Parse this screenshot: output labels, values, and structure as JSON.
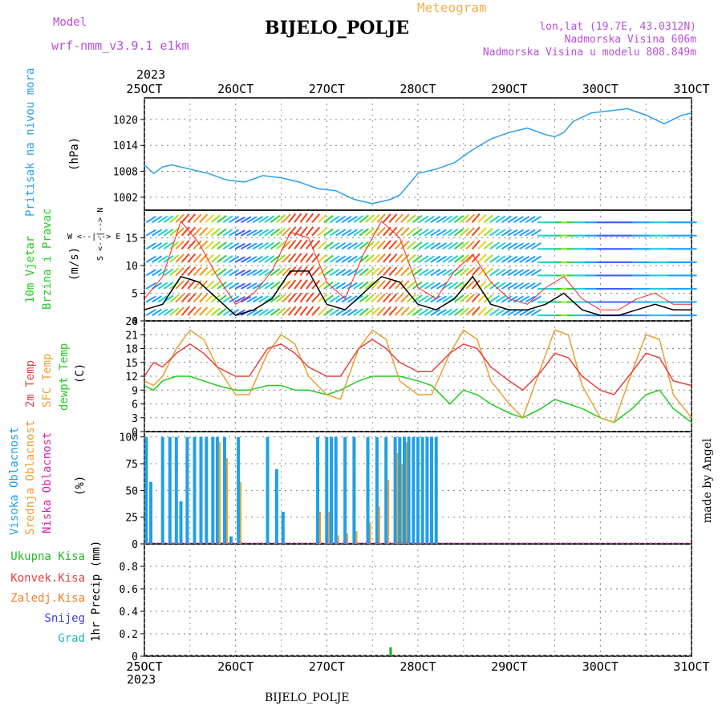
{
  "header": {
    "model_label": "Model",
    "model_name": "wrf-nmm_v3.9.1 e1km",
    "chart_title": "BIJELO_POLJE",
    "meteogram_label": "Meteogram",
    "location": "lon,lat (19.7E, 43.0312N)",
    "altitude": "Nadmorska Visina 606m",
    "model_altitude": "Nadmorska Visina u modelu 808.849m",
    "year_top": "2023",
    "year_bottom": "2023",
    "footer_station": "BIJELO_POLJE",
    "credit": "made by Angel"
  },
  "colors": {
    "pressure": "#2aa0e6",
    "temp2m": "#e84040",
    "sfc_temp": "#e8a030",
    "dewpt": "#22cc22",
    "wind_speed": "#000000",
    "wind_gust": "#ff2020",
    "high_cloud": "#20a0e6",
    "mid_cloud": "#e8a030",
    "low_cloud": "#dd20aa",
    "precip": "#22aa22",
    "grid": "#808080",
    "purple_text": "#b84fd6"
  },
  "x_axis": {
    "tick_labels": [
      "25OCT",
      "26OCT",
      "27OCT",
      "28OCT",
      "29OCT",
      "30OCT",
      "31OCT"
    ],
    "days": [
      25,
      26,
      27,
      28,
      29,
      30,
      31
    ],
    "range_days": [
      25,
      31
    ]
  },
  "panels": {
    "pressure": {
      "ylabel": "Pritisak na nivou mora",
      "unit": "(hPa)",
      "yticks": [
        1002,
        1008,
        1014,
        1020
      ],
      "ylim": [
        999,
        1025
      ]
    },
    "wind": {
      "ylabel1": "10m Vjetar",
      "ylabel2": "Brzina i Pravac",
      "unit": "(m/s)",
      "compass_ns": "S <--|--> N",
      "compass_ew": "W <--|--> E",
      "yticks": [
        0,
        5,
        10,
        15
      ],
      "ylim": [
        0,
        20
      ]
    },
    "temperature": {
      "ylabel1": "2m Temp",
      "ylabel2": "SFC Temp",
      "ylabel3": "dewpt Temp",
      "unit": "(C)",
      "yticks": [
        0,
        3,
        6,
        9,
        12,
        15,
        18,
        21,
        24
      ],
      "ylim": [
        0,
        24
      ]
    },
    "cloud": {
      "ylabel1": "Visoka Oblacnost",
      "ylabel2": "Srednja Oblacnost",
      "ylabel3": "Niska Oblacnost",
      "unit": "(%)",
      "yticks": [
        0,
        25,
        50,
        75,
        100
      ],
      "ylim": [
        0,
        105
      ]
    },
    "precip": {
      "legend": [
        "Ukupna Kisa",
        "Konvek.Kisa",
        "Zaledj.Kisa",
        "Snijeg",
        "Grad"
      ],
      "legend_colors": [
        "#22bb22",
        "#e84040",
        "#f08030",
        "#4040e0",
        "#20b8b8"
      ],
      "ylabel": "1hr Precip (mm)",
      "yticks": [
        0,
        0.2,
        0.4,
        0.6,
        0.8
      ],
      "ylim": [
        0,
        1.0
      ]
    }
  },
  "chart_data": [
    {
      "type": "line",
      "name": "pressure",
      "x": [
        25,
        25.1,
        25.2,
        25.3,
        25.5,
        25.7,
        25.9,
        26.1,
        26.3,
        26.5,
        26.7,
        26.9,
        27.1,
        27.3,
        27.5,
        27.7,
        27.8,
        27.9,
        28.0,
        28.2,
        28.4,
        28.6,
        28.8,
        29.0,
        29.2,
        29.4,
        29.5,
        29.6,
        29.7,
        29.9,
        30.1,
        30.3,
        30.5,
        30.7,
        30.9,
        31.0
      ],
      "values": [
        1009.5,
        1007.5,
        1009.0,
        1009.5,
        1008.5,
        1007.5,
        1006.0,
        1005.5,
        1007.0,
        1006.5,
        1005.5,
        1004.0,
        1003.5,
        1001.5,
        1000.5,
        1001.5,
        1002.5,
        1005.0,
        1007.5,
        1008.5,
        1010.0,
        1013.0,
        1015.5,
        1017.0,
        1018.0,
        1016.5,
        1016.0,
        1017.0,
        1019.5,
        1021.5,
        1022.0,
        1022.5,
        1021.0,
        1019.0,
        1021.0,
        1021.5
      ]
    },
    {
      "type": "line",
      "name": "wind",
      "x": [
        25,
        25.2,
        25.4,
        25.6,
        25.8,
        26.0,
        26.2,
        26.4,
        26.6,
        26.8,
        27.0,
        27.2,
        27.4,
        27.6,
        27.8,
        28.0,
        28.2,
        28.4,
        28.6,
        28.8,
        29.0,
        29.2,
        29.4,
        29.6,
        29.8,
        30.0,
        30.2,
        30.4,
        30.6,
        30.8,
        31.0
      ],
      "speed": [
        2,
        3,
        8,
        7,
        4,
        1,
        2,
        4,
        9,
        9,
        3,
        2,
        5,
        8,
        7,
        3,
        2,
        4,
        8,
        3,
        2,
        2,
        3,
        5,
        2,
        1,
        1,
        2,
        3,
        2,
        2
      ],
      "gust": [
        4,
        8,
        18,
        14,
        8,
        3,
        5,
        9,
        16,
        15,
        7,
        4,
        12,
        18,
        15,
        6,
        4,
        9,
        12,
        7,
        4,
        3,
        6,
        8,
        4,
        2,
        2,
        4,
        5,
        3,
        3
      ]
    },
    {
      "type": "line",
      "name": "temperature",
      "x": [
        25,
        25.1,
        25.2,
        25.35,
        25.5,
        25.65,
        25.8,
        26.0,
        26.15,
        26.35,
        26.5,
        26.65,
        26.8,
        27.0,
        27.15,
        27.35,
        27.5,
        27.65,
        27.8,
        28.0,
        28.15,
        28.35,
        28.5,
        28.65,
        28.8,
        29.0,
        29.15,
        29.35,
        29.5,
        29.65,
        29.8,
        30.0,
        30.15,
        30.35,
        30.5,
        30.65,
        30.8,
        31.0
      ],
      "t2m": [
        12,
        15,
        14,
        17,
        19,
        17,
        14,
        12,
        12,
        18,
        19,
        17,
        14,
        12,
        12,
        18,
        20,
        18,
        15,
        13,
        13,
        17,
        19,
        18,
        14,
        11,
        9,
        13,
        17,
        16,
        12,
        9,
        8,
        13,
        17,
        16,
        11,
        10
      ],
      "sfc": [
        11,
        10,
        12,
        18,
        22,
        20,
        14,
        8,
        8,
        17,
        21,
        19,
        12,
        8,
        7,
        18,
        22,
        20,
        11,
        8,
        8,
        17,
        22,
        20,
        11,
        6,
        3,
        14,
        22,
        21,
        10,
        3,
        2,
        13,
        21,
        20,
        8,
        3
      ],
      "dewpt": [
        10,
        9,
        11,
        12,
        12,
        11,
        10,
        9,
        9,
        10,
        10,
        9,
        9,
        8,
        9,
        11,
        12,
        12,
        12,
        11,
        10,
        6,
        9,
        8,
        6,
        4,
        3,
        5,
        7,
        6,
        5,
        3,
        2,
        5,
        8,
        9,
        5,
        2
      ]
    },
    {
      "type": "bar",
      "name": "cloud",
      "x": [
        25.02,
        25.07,
        25.2,
        25.28,
        25.35,
        25.4,
        25.47,
        25.55,
        25.62,
        25.68,
        25.75,
        25.8,
        25.88,
        25.95,
        26.03,
        26.35,
        26.45,
        26.52,
        26.9,
        27.0,
        27.05,
        27.1,
        27.2,
        27.3,
        27.45,
        27.55,
        27.65,
        27.75,
        27.8,
        27.85,
        27.9,
        27.95,
        28.0,
        28.05,
        28.1,
        28.15,
        28.2
      ],
      "high": [
        100,
        58,
        100,
        100,
        100,
        40,
        100,
        100,
        100,
        100,
        100,
        100,
        100,
        7,
        100,
        100,
        70,
        30,
        100,
        100,
        100,
        100,
        100,
        100,
        100,
        100,
        100,
        100,
        100,
        100,
        100,
        100,
        100,
        100,
        100,
        100,
        100
      ],
      "mid": [
        0,
        0,
        0,
        0,
        0,
        0,
        0,
        0,
        0,
        0,
        0,
        95,
        80,
        0,
        58,
        0,
        0,
        0,
        30,
        30,
        0,
        8,
        10,
        12,
        20,
        35,
        60,
        85,
        75,
        95,
        0,
        0,
        0,
        0,
        0,
        0,
        0
      ],
      "low": [
        0,
        0,
        0,
        0,
        0,
        0,
        0,
        0,
        0,
        0,
        0,
        0,
        0,
        0,
        0,
        0,
        0,
        0,
        0,
        0,
        0,
        0,
        0,
        0,
        0,
        0,
        0,
        0,
        0,
        0,
        0,
        0,
        0,
        0,
        0,
        0,
        0
      ]
    },
    {
      "type": "bar",
      "name": "precip",
      "x": [
        27.7
      ],
      "values": [
        0.08
      ]
    }
  ]
}
